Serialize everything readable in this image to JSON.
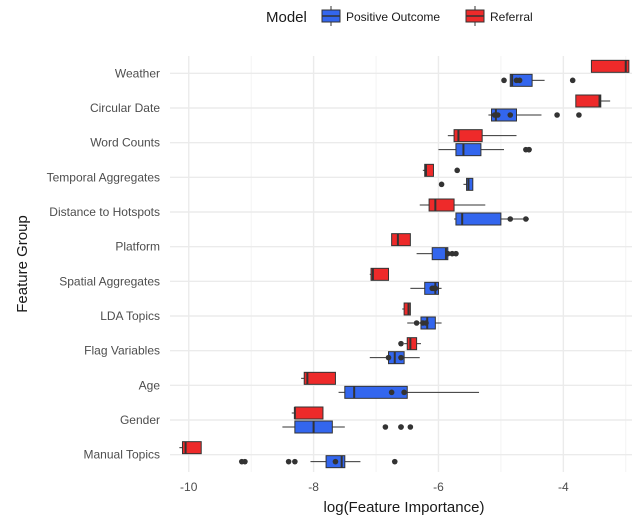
{
  "chart_data": {
    "type": "boxplot",
    "title": "",
    "xlabel": "log(Feature Importance)",
    "ylabel": "Feature Group",
    "xlim": [
      -10.3,
      -2.9
    ],
    "x_ticks": [
      -10,
      -8,
      -6,
      -4
    ],
    "x_tick_labels": [
      "-10",
      "-8",
      "-6",
      "-4"
    ],
    "grid": true,
    "legend": {
      "title": "Model",
      "position": "top",
      "entries": [
        {
          "label": "Positive Outcome",
          "color": "#3366ee"
        },
        {
          "label": "Referral",
          "color": "#ee2a2a"
        }
      ]
    },
    "categories": [
      "Weather",
      "Circular Date",
      "Word Counts",
      "Temporal Aggregates",
      "Distance to Hotspots",
      "Platform",
      "Spatial Aggregates",
      "LDA Topics",
      "Flag Variables",
      "Age",
      "Gender",
      "Manual Topics"
    ],
    "series": [
      {
        "name": "Referral",
        "color": "#ee2a2a",
        "boxes": [
          {
            "category": "Weather",
            "whisker_low": -3.55,
            "q1": -3.55,
            "median": -3.0,
            "q3": -2.95,
            "whisker_high": -2.95,
            "outliers": []
          },
          {
            "category": "Circular Date",
            "whisker_low": -3.8,
            "q1": -3.8,
            "median": -3.42,
            "q3": -3.4,
            "whisker_high": -3.25,
            "outliers": []
          },
          {
            "category": "Word Counts",
            "whisker_low": -5.85,
            "q1": -5.75,
            "median": -5.68,
            "q3": -5.3,
            "whisker_high": -4.75,
            "outliers": []
          },
          {
            "category": "Temporal Aggregates",
            "whisker_low": -6.25,
            "q1": -6.22,
            "median": -6.2,
            "q3": -6.08,
            "whisker_high": -6.08,
            "outliers": [
              -5.7
            ]
          },
          {
            "category": "Distance to Hotspots",
            "whisker_low": -6.3,
            "q1": -6.15,
            "median": -6.05,
            "q3": -5.75,
            "whisker_high": -5.25,
            "outliers": []
          },
          {
            "category": "Platform",
            "whisker_low": -6.75,
            "q1": -6.75,
            "median": -6.65,
            "q3": -6.45,
            "whisker_high": -6.45,
            "outliers": []
          },
          {
            "category": "Spatial Aggregates",
            "whisker_low": -7.1,
            "q1": -7.08,
            "median": -7.05,
            "q3": -6.8,
            "whisker_high": -6.8,
            "outliers": []
          },
          {
            "category": "LDA Topics",
            "whisker_low": -6.58,
            "q1": -6.55,
            "median": -6.48,
            "q3": -6.45,
            "whisker_high": -6.45,
            "outliers": []
          },
          {
            "category": "Flag Variables",
            "whisker_low": -6.55,
            "q1": -6.5,
            "median": -6.45,
            "q3": -6.35,
            "whisker_high": -6.28,
            "outliers": [
              -6.6
            ]
          },
          {
            "category": "Age",
            "whisker_low": -8.2,
            "q1": -8.15,
            "median": -8.1,
            "q3": -7.65,
            "whisker_high": -7.65,
            "outliers": []
          },
          {
            "category": "Gender",
            "whisker_low": -8.35,
            "q1": -8.3,
            "median": -8.3,
            "q3": -7.85,
            "whisker_high": -7.85,
            "outliers": []
          },
          {
            "category": "Manual Topics",
            "whisker_low": -10.15,
            "q1": -10.1,
            "median": -10.05,
            "q3": -9.8,
            "whisker_high": -9.8,
            "outliers": []
          }
        ]
      },
      {
        "name": "Positive Outcome",
        "color": "#3366ee",
        "boxes": [
          {
            "category": "Weather",
            "whisker_low": -4.85,
            "q1": -4.85,
            "median": -4.82,
            "q3": -4.5,
            "whisker_high": -4.3,
            "outliers": [
              -4.95,
              -4.75,
              -4.7,
              -3.85
            ]
          },
          {
            "category": "Circular Date",
            "whisker_low": -5.2,
            "q1": -5.15,
            "median": -5.08,
            "q3": -4.75,
            "whisker_high": -4.35,
            "outliers": [
              -5.1,
              -5.05,
              -4.85,
              -4.1,
              -3.75
            ]
          },
          {
            "category": "Word Counts",
            "whisker_low": -6.0,
            "q1": -5.72,
            "median": -5.6,
            "q3": -5.32,
            "whisker_high": -4.95,
            "outliers": [
              -4.6,
              -4.55,
              -4.55
            ]
          },
          {
            "category": "Temporal Aggregates",
            "whisker_low": -5.6,
            "q1": -5.55,
            "median": -5.52,
            "q3": -5.45,
            "whisker_high": -5.45,
            "outliers": [
              -5.95
            ]
          },
          {
            "category": "Distance to Hotspots",
            "whisker_low": -5.75,
            "q1": -5.72,
            "median": -5.62,
            "q3": -5.0,
            "whisker_high": -4.55,
            "outliers": [
              -4.85,
              -4.6
            ]
          },
          {
            "category": "Platform",
            "whisker_low": -6.35,
            "q1": -6.1,
            "median": -5.88,
            "q3": -5.85,
            "whisker_high": -5.8,
            "outliers": [
              -5.85,
              -5.78,
              -5.72
            ]
          },
          {
            "category": "Spatial Aggregates",
            "whisker_low": -6.45,
            "q1": -6.22,
            "median": -6.05,
            "q3": -6.0,
            "whisker_high": -5.95,
            "outliers": [
              -6.1,
              -6.07,
              -6.05
            ]
          },
          {
            "category": "LDA Topics",
            "whisker_low": -6.5,
            "q1": -6.28,
            "median": -6.18,
            "q3": -6.05,
            "whisker_high": -5.95,
            "outliers": [
              -6.35,
              -6.25,
              -6.2
            ]
          },
          {
            "category": "Flag Variables",
            "whisker_low": -7.1,
            "q1": -6.8,
            "median": -6.7,
            "q3": -6.55,
            "whisker_high": -6.3,
            "outliers": [
              -6.8,
              -6.6
            ]
          },
          {
            "category": "Age",
            "whisker_low": -7.6,
            "q1": -7.5,
            "median": -7.35,
            "q3": -6.5,
            "whisker_high": -5.35,
            "outliers": [
              -6.75,
              -6.55
            ]
          },
          {
            "category": "Gender",
            "whisker_low": -8.5,
            "q1": -8.3,
            "median": -8.0,
            "q3": -7.7,
            "whisker_high": -7.5,
            "outliers": [
              -6.85,
              -6.6,
              -6.45,
              -6.6
            ]
          },
          {
            "category": "Manual Topics",
            "whisker_low": -8.05,
            "q1": -7.8,
            "median": -7.55,
            "q3": -7.5,
            "whisker_high": -7.25,
            "outliers": [
              -9.1,
              -9.15,
              -8.4,
              -8.3,
              -7.65,
              -6.7
            ]
          }
        ]
      }
    ]
  }
}
